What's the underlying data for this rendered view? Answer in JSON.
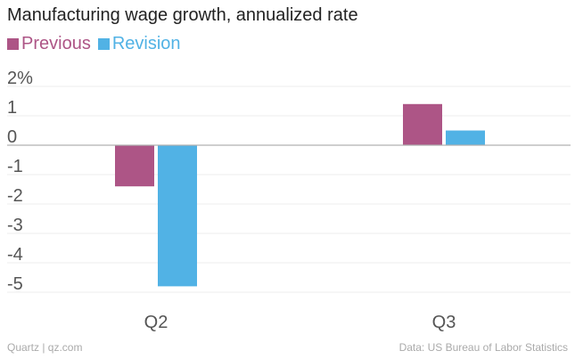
{
  "chart_data": {
    "type": "bar",
    "title": "Manufacturing wage growth, annualized rate",
    "categories": [
      "Q2",
      "Q3"
    ],
    "series": [
      {
        "name": "Previous",
        "color": "#ad5586",
        "values": [
          -1.4,
          1.4
        ]
      },
      {
        "name": "Revision",
        "color": "#51b2e5",
        "values": [
          -4.8,
          0.5
        ]
      }
    ],
    "ylim": [
      -5,
      2
    ],
    "yticks": [
      2,
      1,
      0,
      -1,
      -2,
      -3,
      -4,
      -5
    ],
    "ytick_labels": [
      "2%",
      "1",
      "0",
      "-1",
      "-2",
      "-3",
      "-4",
      "-5"
    ],
    "grid": true,
    "legend": "top-left",
    "xlabel": "",
    "ylabel": ""
  },
  "footer": {
    "source_left": "Quartz | qz.com",
    "source_right": "Data: US Bureau of Labor Statistics"
  }
}
